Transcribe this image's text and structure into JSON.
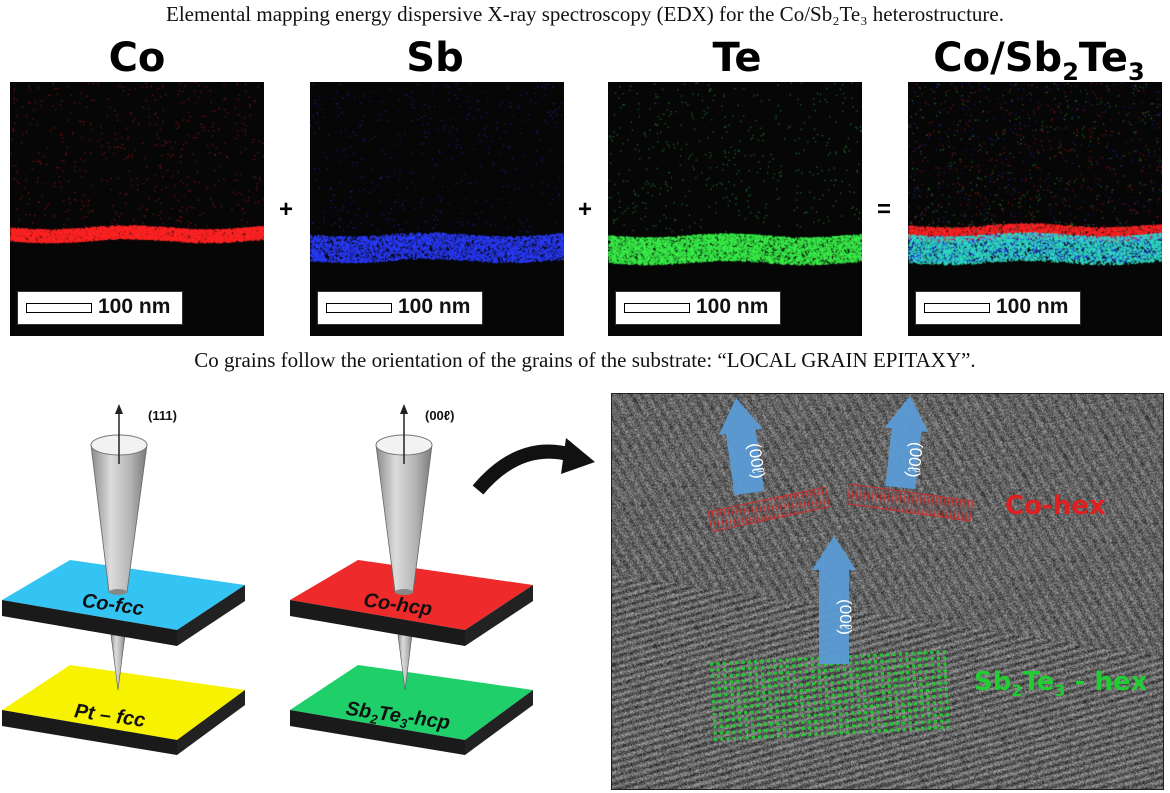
{
  "top_caption": "Elemental mapping energy dispersive X-ray spectroscopy (EDX) for the Co/Sb₂Te₃ heterostructure.",
  "mid_caption": "Co grains follow the orientation of the grains of the substrate: “LOCAL GRAIN EPITAXY”.",
  "edx_panels": [
    {
      "label": "Co",
      "scale": "100 nm",
      "color": "#ff2020"
    },
    {
      "label": "Sb",
      "scale": "100 nm",
      "color": "#2030ff"
    },
    {
      "label": "Te",
      "scale": "100 nm",
      "color": "#30e040"
    },
    {
      "label_main": "Co/Sb",
      "label_sub1": "2",
      "label_mid": "Te",
      "label_sub2": "3",
      "scale": "100 nm",
      "color": "#20c0c0"
    }
  ],
  "operators": {
    "plus1": "+",
    "plus2": "+",
    "equals": "="
  },
  "left_model": {
    "axis_label": "(111)",
    "top_plate": "Co-fcc",
    "bottom_plate": "Pt – fcc",
    "top_color": "#33c4f4",
    "bottom_color": "#f7f300"
  },
  "right_model": {
    "axis_label": "(00ℓ)",
    "top_plate": "Co-hcp",
    "bottom_plate_main": "Sb",
    "bottom_plate_sub1": "2",
    "bottom_plate_mid": "Te",
    "bottom_plate_sub2": "3",
    "bottom_plate_end": "-hcp",
    "top_color": "#ee2a2a",
    "bottom_color": "#1fcf6a"
  },
  "tem": {
    "arrow_label": "(00ℓ)",
    "co_label": "Co-hex",
    "co_color": "#e02020",
    "sbte_main": "Sb",
    "sbte_sub1": "2",
    "sbte_mid": "Te",
    "sbte_sub2": "3",
    "sbte_end": " - hex",
    "sbte_color": "#22cc33",
    "arrow_color": "#5b9bd5"
  }
}
